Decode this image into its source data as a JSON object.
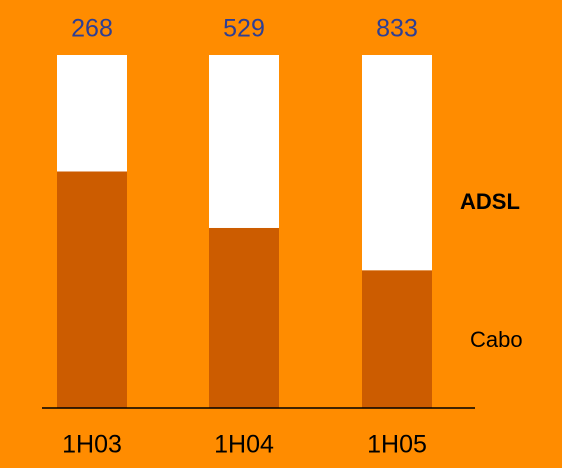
{
  "chart_data": {
    "type": "stacked_bar_percent",
    "categories": [
      "1H03",
      "1H04",
      "1H05"
    ],
    "series": [
      {
        "name": "Cabo",
        "color": "#cc5c00",
        "values": [
          67,
          51,
          39
        ]
      },
      {
        "name": "ADSL",
        "color": "#ffffff",
        "values": [
          33,
          49,
          61
        ]
      }
    ],
    "totals": [
      268,
      529,
      833
    ],
    "ylim": [
      0,
      100
    ]
  }
}
